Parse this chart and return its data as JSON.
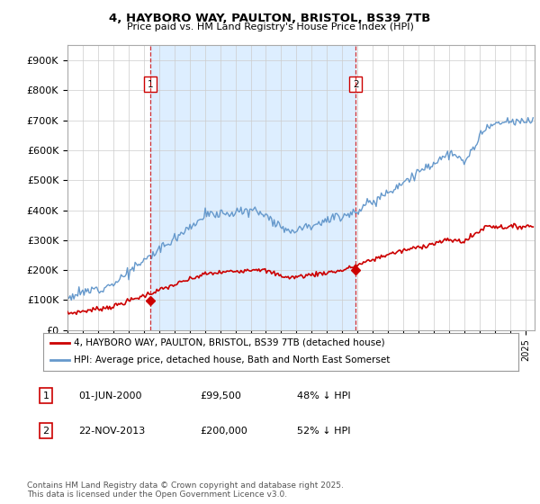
{
  "title": "4, HAYBORO WAY, PAULTON, BRISTOL, BS39 7TB",
  "subtitle": "Price paid vs. HM Land Registry's House Price Index (HPI)",
  "ylim": [
    0,
    950000
  ],
  "yticks": [
    0,
    100000,
    200000,
    300000,
    400000,
    500000,
    600000,
    700000,
    800000,
    900000
  ],
  "ytick_labels": [
    "£0",
    "£100K",
    "£200K",
    "£300K",
    "£400K",
    "£500K",
    "£600K",
    "£700K",
    "£800K",
    "£900K"
  ],
  "sale1_date": 2000.42,
  "sale1_price": 99500,
  "sale1_label": "1",
  "sale2_date": 2013.88,
  "sale2_price": 200000,
  "sale2_label": "2",
  "hpi_color": "#6699cc",
  "price_color": "#cc0000",
  "sale_marker_color": "#cc0000",
  "vline_color": "#cc0000",
  "shade_color": "#ddeeff",
  "background_color": "#ffffff",
  "grid_color": "#cccccc",
  "legend_label_price": "4, HAYBORO WAY, PAULTON, BRISTOL, BS39 7TB (detached house)",
  "legend_label_hpi": "HPI: Average price, detached house, Bath and North East Somerset",
  "footnote": "Contains HM Land Registry data © Crown copyright and database right 2025.\nThis data is licensed under the Open Government Licence v3.0.",
  "table_rows": [
    {
      "num": "1",
      "date": "01-JUN-2000",
      "price": "£99,500",
      "change": "48% ↓ HPI"
    },
    {
      "num": "2",
      "date": "22-NOV-2013",
      "price": "£200,000",
      "change": "52% ↓ HPI"
    }
  ],
  "hpi_seed": 12,
  "price_seed": 7
}
